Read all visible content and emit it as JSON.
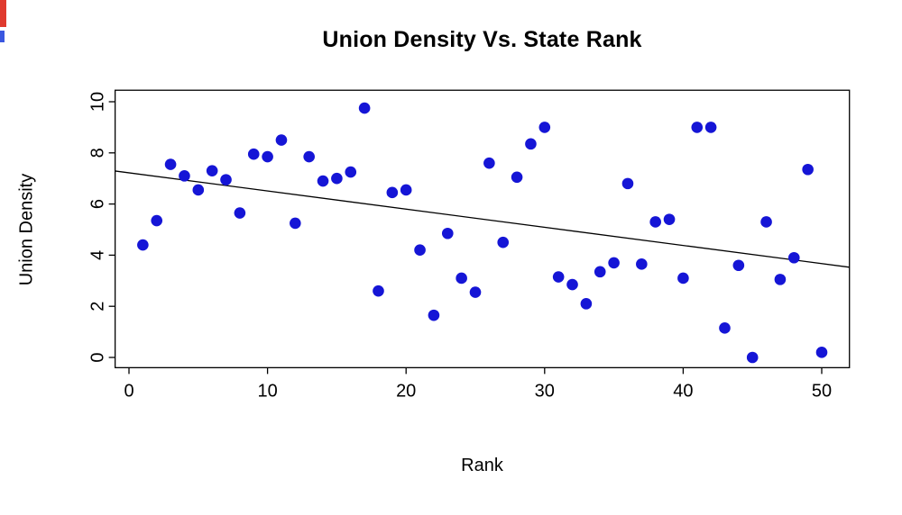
{
  "title": "Union Density Vs. State Rank",
  "colors": {
    "point": "#1515d6",
    "trend_line": "#000000",
    "axis": "#000000",
    "background": "#ffffff",
    "artifact_red": "#e03a2e",
    "artifact_blue": "#3a57e0"
  },
  "chart_data": {
    "type": "scatter",
    "title": "Union Density Vs. State Rank",
    "xlabel": "Rank",
    "ylabel": "Union Density",
    "xlim": [
      -1,
      52
    ],
    "ylim": [
      -0.4,
      10.45
    ],
    "x_ticks": [
      0,
      10,
      20,
      30,
      40,
      50
    ],
    "y_ticks": [
      0,
      2,
      4,
      6,
      8,
      10
    ],
    "grid": false,
    "legend": "none",
    "point_color": "#1515d6",
    "points": [
      [
        1,
        4.4
      ],
      [
        2,
        5.35
      ],
      [
        3,
        7.55
      ],
      [
        4,
        7.1
      ],
      [
        5,
        6.55
      ],
      [
        6,
        7.3
      ],
      [
        7,
        6.95
      ],
      [
        8,
        5.65
      ],
      [
        9,
        7.95
      ],
      [
        10,
        7.85
      ],
      [
        11,
        8.5
      ],
      [
        12,
        5.25
      ],
      [
        13,
        7.85
      ],
      [
        14,
        6.9
      ],
      [
        15,
        7.0
      ],
      [
        16,
        7.25
      ],
      [
        17,
        9.75
      ],
      [
        18,
        2.6
      ],
      [
        19,
        6.45
      ],
      [
        20,
        6.55
      ],
      [
        21,
        4.2
      ],
      [
        22,
        1.65
      ],
      [
        23,
        4.85
      ],
      [
        24,
        3.1
      ],
      [
        25,
        2.55
      ],
      [
        26,
        7.6
      ],
      [
        27,
        4.5
      ],
      [
        28,
        7.05
      ],
      [
        29,
        8.35
      ],
      [
        30,
        9.0
      ],
      [
        31,
        3.15
      ],
      [
        32,
        2.85
      ],
      [
        33,
        2.1
      ],
      [
        34,
        3.35
      ],
      [
        35,
        3.7
      ],
      [
        36,
        6.8
      ],
      [
        37,
        3.65
      ],
      [
        38,
        5.3
      ],
      [
        39,
        5.4
      ],
      [
        40,
        3.1
      ],
      [
        41,
        9.0
      ],
      [
        42,
        9.0
      ],
      [
        43,
        1.15
      ],
      [
        44,
        3.6
      ],
      [
        45,
        0.0
      ],
      [
        46,
        5.3
      ],
      [
        47,
        3.05
      ],
      [
        48,
        3.9
      ],
      [
        49,
        7.35
      ],
      [
        50,
        0.2
      ]
    ],
    "trend_line": {
      "slope": -0.071,
      "intercept": 7.22,
      "color": "#000000"
    }
  }
}
